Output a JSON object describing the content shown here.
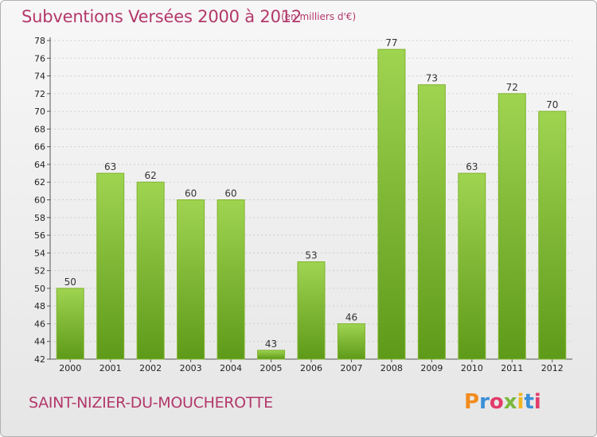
{
  "header": {
    "title": "Subventions Versées 2000 à 2012",
    "unit_note": "(en milliers d'€)"
  },
  "footer": {
    "commune": "SAINT-NIZIER-DU-MOUCHEROTTE",
    "logo_letters": [
      "P",
      "r",
      "o",
      "x",
      "i",
      "t",
      "i"
    ],
    "logo_colors": [
      "#f28c1e",
      "#3a8fd6",
      "#e23b6a",
      "#7ab83c",
      "#f2b71e",
      "#3a8fd6",
      "#e23b6a"
    ]
  },
  "colors": {
    "accent": "#b3386a",
    "bar_top": "#9fd451",
    "bar_bottom": "#5e9a19",
    "grid": "#cfcfcf"
  },
  "chart_data": {
    "type": "bar",
    "categories": [
      "2000",
      "2001",
      "2002",
      "2003",
      "2004",
      "2005",
      "2006",
      "2007",
      "2008",
      "2009",
      "2010",
      "2011",
      "2012"
    ],
    "values": [
      50,
      63,
      62,
      60,
      60,
      43,
      53,
      46,
      77,
      73,
      63,
      72,
      70
    ],
    "ylim": [
      42,
      78
    ],
    "yticks": [
      42,
      44,
      46,
      48,
      50,
      52,
      54,
      56,
      58,
      60,
      62,
      64,
      66,
      68,
      70,
      72,
      74,
      76,
      78
    ],
    "grid": true
  }
}
